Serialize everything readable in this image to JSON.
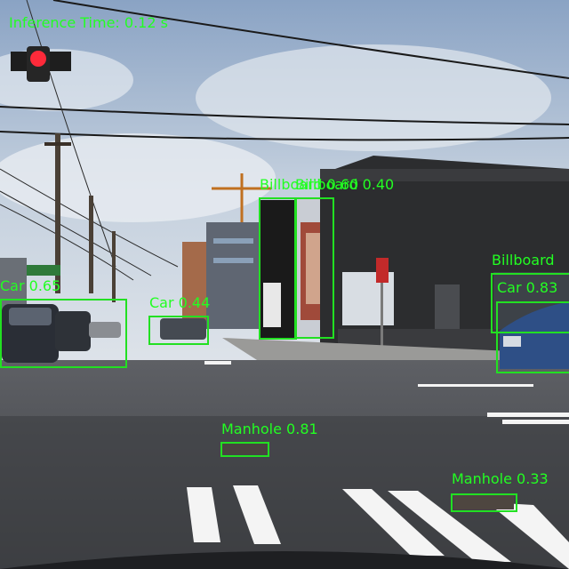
{
  "overlay": {
    "inference_time": "Inference Time: 0.12 s",
    "box_color": "#22e022",
    "label_color": "#22ff22"
  },
  "detections": [
    {
      "label": "Car 0.65"
    },
    {
      "label": "Car 0.44"
    },
    {
      "label": "Billboard 0.60"
    },
    {
      "label": "Billboard 0.40"
    },
    {
      "label": "Billboard"
    },
    {
      "label": "Car 0.83"
    },
    {
      "label": "Manhole 0.81"
    },
    {
      "label": "Manhole 0.33"
    }
  ]
}
